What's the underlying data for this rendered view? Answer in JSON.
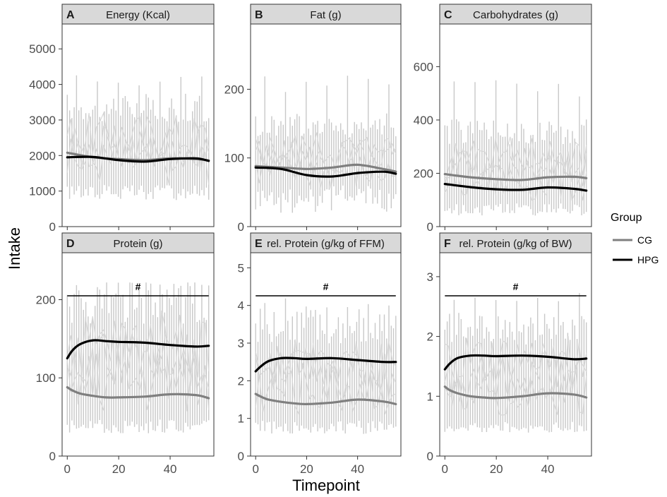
{
  "chart_data": [
    {
      "type": "line",
      "panel": "A",
      "title": "Energy (Kcal)",
      "x": [
        0,
        10,
        20,
        30,
        40,
        50,
        55
      ],
      "xlim": [
        -2,
        57
      ],
      "ylim": [
        0,
        5700
      ],
      "yticks": [
        0,
        1000,
        2000,
        3000,
        4000,
        5000
      ],
      "xticks": [
        0,
        20,
        40
      ],
      "range_band": {
        "low": 1000,
        "high": 3400,
        "max": 4300,
        "min": 650
      },
      "series": [
        {
          "name": "CG",
          "values": [
            2080,
            1950,
            1900,
            1870,
            1920,
            1900,
            1860
          ]
        },
        {
          "name": "HPG",
          "values": [
            1950,
            1960,
            1870,
            1830,
            1900,
            1920,
            1850
          ]
        }
      ],
      "significance": ""
    },
    {
      "type": "line",
      "panel": "B",
      "title": "Fat (g)",
      "x": [
        0,
        10,
        20,
        30,
        40,
        50,
        55
      ],
      "xlim": [
        -2,
        57
      ],
      "ylim": [
        0,
        295
      ],
      "yticks": [
        0,
        100,
        200
      ],
      "xticks": [
        0,
        20,
        40
      ],
      "range_band": {
        "low": 45,
        "high": 150,
        "max": 225,
        "min": 10
      },
      "series": [
        {
          "name": "CG",
          "values": [
            88,
            86,
            84,
            86,
            90,
            84,
            80
          ]
        },
        {
          "name": "HPG",
          "values": [
            86,
            84,
            75,
            73,
            78,
            80,
            77
          ]
        }
      ],
      "significance": ""
    },
    {
      "type": "line",
      "panel": "C",
      "title": "Carbohydrates (g)",
      "x": [
        0,
        10,
        20,
        30,
        40,
        50,
        55
      ],
      "xlim": [
        -2,
        57
      ],
      "ylim": [
        0,
        760
      ],
      "yticks": [
        0,
        200,
        400,
        600
      ],
      "xticks": [
        0,
        20,
        40
      ],
      "range_band": {
        "low": 70,
        "high": 360,
        "max": 570,
        "min": 30
      },
      "series": [
        {
          "name": "CG",
          "values": [
            197,
            185,
            178,
            175,
            185,
            187,
            182
          ]
        },
        {
          "name": "HPG",
          "values": [
            160,
            148,
            140,
            138,
            147,
            142,
            135
          ]
        }
      ],
      "significance": ""
    },
    {
      "type": "line",
      "panel": "D",
      "title": "Protein (g)",
      "x": [
        0,
        2,
        5,
        10,
        15,
        20,
        30,
        40,
        50,
        55
      ],
      "xlim": [
        -2,
        57
      ],
      "ylim": [
        0,
        260
      ],
      "yticks": [
        0,
        100,
        200
      ],
      "xticks": [
        0,
        20,
        40
      ],
      "range_band": {
        "low": 40,
        "high": 200,
        "max": 222,
        "min": 25
      },
      "series": [
        {
          "name": "CG",
          "values": [
            88,
            84,
            80,
            77,
            75,
            75,
            76,
            79,
            78,
            74
          ]
        },
        {
          "name": "HPG",
          "values": [
            125,
            135,
            143,
            148,
            147,
            146,
            145,
            142,
            140,
            141
          ]
        }
      ],
      "significance": "#"
    },
    {
      "type": "line",
      "panel": "E",
      "title": "rel. Protein (g/kg of FFM)",
      "x": [
        0,
        2,
        5,
        10,
        15,
        20,
        30,
        40,
        50,
        55
      ],
      "xlim": [
        -2,
        57
      ],
      "ylim": [
        0,
        5.4
      ],
      "yticks": [
        0,
        1,
        2,
        3,
        4,
        5
      ],
      "xticks": [
        0,
        20,
        40
      ],
      "range_band": {
        "low": 0.8,
        "high": 3.5,
        "max": 4.2,
        "min": 0.5
      },
      "series": [
        {
          "name": "CG",
          "values": [
            1.65,
            1.58,
            1.5,
            1.44,
            1.4,
            1.38,
            1.42,
            1.5,
            1.45,
            1.38
          ]
        },
        {
          "name": "HPG",
          "values": [
            2.25,
            2.38,
            2.52,
            2.6,
            2.6,
            2.58,
            2.6,
            2.55,
            2.5,
            2.5
          ]
        }
      ],
      "significance": "#"
    },
    {
      "type": "line",
      "panel": "F",
      "title": "rel. Protein (g/kg of BW)",
      "x": [
        0,
        2,
        5,
        10,
        15,
        20,
        30,
        40,
        50,
        55
      ],
      "xlim": [
        -2,
        57
      ],
      "ylim": [
        0,
        3.4
      ],
      "yticks": [
        0,
        1,
        2,
        3
      ],
      "xticks": [
        0,
        20,
        40
      ],
      "range_band": {
        "low": 0.5,
        "high": 2.15,
        "max": 2.75,
        "min": 0.35
      },
      "series": [
        {
          "name": "CG",
          "values": [
            1.16,
            1.1,
            1.05,
            1.0,
            0.98,
            0.97,
            1.0,
            1.05,
            1.03,
            0.98
          ]
        },
        {
          "name": "HPG",
          "values": [
            1.45,
            1.55,
            1.64,
            1.68,
            1.68,
            1.67,
            1.68,
            1.66,
            1.62,
            1.63
          ]
        }
      ],
      "significance": "#"
    }
  ],
  "axes": {
    "xlabel": "Timepoint",
    "ylabel": "Intake"
  },
  "legend": {
    "title": "Group",
    "items": [
      {
        "label": "CG",
        "color": "#7f7f7f"
      },
      {
        "label": "HPG",
        "color": "#000000"
      }
    ]
  },
  "colors": {
    "strip": "#d9d9d9",
    "raw_lines": "#c8c8c8",
    "cg": "#7f7f7f",
    "hpg": "#000000"
  }
}
